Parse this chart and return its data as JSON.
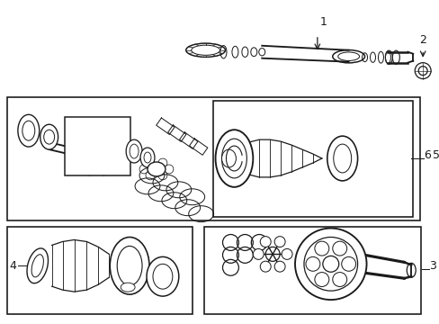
{
  "bg_color": "#ffffff",
  "line_color": "#1a1a1a",
  "lw": 0.9,
  "figsize": [
    4.89,
    3.6
  ],
  "dpi": 100,
  "xlim": [
    0,
    489
  ],
  "ylim": [
    0,
    360
  ]
}
